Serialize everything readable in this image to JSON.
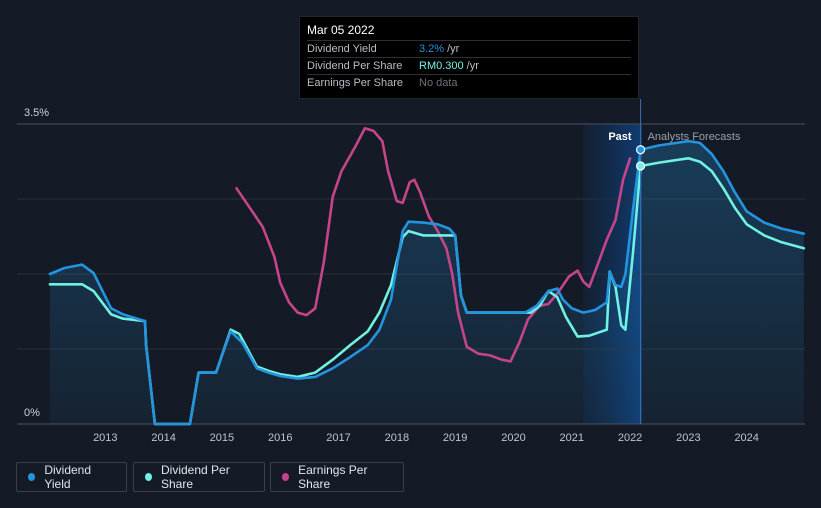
{
  "tooltip": {
    "date": "Mar 05 2022",
    "rows": [
      {
        "label": "Dividend Yield",
        "value": "3.2%",
        "unit": "/yr"
      },
      {
        "label": "Dividend Per Share",
        "value": "RM0.300",
        "unit": "/yr"
      },
      {
        "label": "Earnings Per Share",
        "value": "No data",
        "unit": ""
      }
    ]
  },
  "legend": [
    {
      "label": "Dividend Yield",
      "color": "#2394df"
    },
    {
      "label": "Dividend Per Share",
      "color": "#6ff2e3"
    },
    {
      "label": "Earnings Per Share",
      "color": "#c6458a"
    }
  ],
  "labels": {
    "past": "Past",
    "forecast": "Analysts Forecasts"
  },
  "chart_data": {
    "type": "line",
    "xlim": [
      2012.0,
      2025.0
    ],
    "ylim": [
      0,
      3.5
    ],
    "x_ticks": [
      2013,
      2014,
      2015,
      2016,
      2017,
      2018,
      2019,
      2020,
      2021,
      2022,
      2023,
      2024
    ],
    "y_tick_labels": [
      {
        "value": 3.5,
        "label": "3.5%"
      },
      {
        "value": 0,
        "label": "0%"
      }
    ],
    "past_region": [
      2021.2,
      2022.2
    ],
    "marker_x": 2022.18,
    "series": [
      {
        "name": "Dividend Yield",
        "color": "#2394df",
        "fill": true,
        "points": [
          [
            2012.05,
            1.75
          ],
          [
            2012.3,
            1.82
          ],
          [
            2012.6,
            1.86
          ],
          [
            2012.8,
            1.76
          ],
          [
            2013.1,
            1.35
          ],
          [
            2013.3,
            1.28
          ],
          [
            2013.68,
            1.2
          ],
          [
            2013.7,
            0.92
          ],
          [
            2013.85,
            0
          ],
          [
            2014.45,
            0
          ],
          [
            2014.6,
            0.6
          ],
          [
            2014.9,
            0.6
          ],
          [
            2015.0,
            0.8
          ],
          [
            2015.15,
            1.08
          ],
          [
            2015.35,
            0.95
          ],
          [
            2015.6,
            0.65
          ],
          [
            2015.8,
            0.6
          ],
          [
            2016.0,
            0.56
          ],
          [
            2016.3,
            0.53
          ],
          [
            2016.6,
            0.55
          ],
          [
            2016.9,
            0.65
          ],
          [
            2017.2,
            0.78
          ],
          [
            2017.5,
            0.92
          ],
          [
            2017.7,
            1.1
          ],
          [
            2017.9,
            1.45
          ],
          [
            2018.1,
            2.25
          ],
          [
            2018.2,
            2.36
          ],
          [
            2018.45,
            2.35
          ],
          [
            2018.7,
            2.33
          ],
          [
            2018.9,
            2.28
          ],
          [
            2019.0,
            2.2
          ],
          [
            2019.1,
            1.5
          ],
          [
            2019.2,
            1.3
          ],
          [
            2019.5,
            1.3
          ],
          [
            2019.8,
            1.3
          ],
          [
            2020.0,
            1.3
          ],
          [
            2020.2,
            1.3
          ],
          [
            2020.4,
            1.38
          ],
          [
            2020.6,
            1.55
          ],
          [
            2020.75,
            1.58
          ],
          [
            2020.85,
            1.45
          ],
          [
            2021.0,
            1.35
          ],
          [
            2021.2,
            1.3
          ],
          [
            2021.4,
            1.33
          ],
          [
            2021.6,
            1.42
          ],
          [
            2021.65,
            1.78
          ],
          [
            2021.75,
            1.62
          ],
          [
            2021.85,
            1.6
          ],
          [
            2021.92,
            1.75
          ],
          [
            2022.05,
            2.5
          ],
          [
            2022.18,
            3.2
          ],
          [
            2022.5,
            3.25
          ],
          [
            2022.8,
            3.28
          ],
          [
            2023.0,
            3.3
          ],
          [
            2023.2,
            3.28
          ],
          [
            2023.4,
            3.15
          ],
          [
            2023.6,
            2.95
          ],
          [
            2023.8,
            2.7
          ],
          [
            2024.0,
            2.48
          ],
          [
            2024.3,
            2.35
          ],
          [
            2024.6,
            2.28
          ],
          [
            2024.98,
            2.22
          ]
        ]
      },
      {
        "name": "Dividend Per Share",
        "color": "#6ff2e3",
        "fill": false,
        "points": [
          [
            2012.05,
            1.63
          ],
          [
            2012.6,
            1.63
          ],
          [
            2012.8,
            1.55
          ],
          [
            2013.1,
            1.28
          ],
          [
            2013.3,
            1.23
          ],
          [
            2013.68,
            1.2
          ],
          [
            2013.7,
            0.92
          ],
          [
            2013.85,
            0
          ],
          [
            2014.45,
            0
          ],
          [
            2014.6,
            0.6
          ],
          [
            2014.9,
            0.6
          ],
          [
            2015.0,
            0.8
          ],
          [
            2015.15,
            1.1
          ],
          [
            2015.3,
            1.05
          ],
          [
            2015.6,
            0.67
          ],
          [
            2015.8,
            0.62
          ],
          [
            2016.0,
            0.58
          ],
          [
            2016.3,
            0.55
          ],
          [
            2016.6,
            0.6
          ],
          [
            2016.9,
            0.75
          ],
          [
            2017.2,
            0.92
          ],
          [
            2017.5,
            1.08
          ],
          [
            2017.7,
            1.3
          ],
          [
            2017.9,
            1.62
          ],
          [
            2018.1,
            2.18
          ],
          [
            2018.2,
            2.25
          ],
          [
            2018.45,
            2.2
          ],
          [
            2018.7,
            2.2
          ],
          [
            2018.9,
            2.2
          ],
          [
            2019.0,
            2.2
          ],
          [
            2019.1,
            1.5
          ],
          [
            2019.2,
            1.3
          ],
          [
            2019.5,
            1.3
          ],
          [
            2019.8,
            1.3
          ],
          [
            2020.0,
            1.3
          ],
          [
            2020.3,
            1.3
          ],
          [
            2020.45,
            1.38
          ],
          [
            2020.6,
            1.55
          ],
          [
            2020.75,
            1.48
          ],
          [
            2020.9,
            1.25
          ],
          [
            2021.1,
            1.02
          ],
          [
            2021.3,
            1.03
          ],
          [
            2021.6,
            1.1
          ],
          [
            2021.65,
            1.78
          ],
          [
            2021.75,
            1.6
          ],
          [
            2021.85,
            1.15
          ],
          [
            2021.92,
            1.1
          ],
          [
            2022.05,
            2.0
          ],
          [
            2022.18,
            3.01
          ],
          [
            2022.5,
            3.05
          ],
          [
            2022.8,
            3.08
          ],
          [
            2023.0,
            3.1
          ],
          [
            2023.2,
            3.06
          ],
          [
            2023.4,
            2.95
          ],
          [
            2023.6,
            2.75
          ],
          [
            2023.8,
            2.52
          ],
          [
            2024.0,
            2.33
          ],
          [
            2024.3,
            2.2
          ],
          [
            2024.6,
            2.12
          ],
          [
            2024.98,
            2.05
          ]
        ]
      },
      {
        "name": "Earnings Per Share",
        "color": "#c6458a",
        "fill": false,
        "points": [
          [
            2015.25,
            2.75
          ],
          [
            2015.5,
            2.5
          ],
          [
            2015.7,
            2.3
          ],
          [
            2015.9,
            1.95
          ],
          [
            2016.0,
            1.65
          ],
          [
            2016.15,
            1.42
          ],
          [
            2016.3,
            1.3
          ],
          [
            2016.45,
            1.27
          ],
          [
            2016.6,
            1.35
          ],
          [
            2016.75,
            1.9
          ],
          [
            2016.9,
            2.65
          ],
          [
            2017.05,
            2.95
          ],
          [
            2017.3,
            3.25
          ],
          [
            2017.45,
            3.45
          ],
          [
            2017.6,
            3.42
          ],
          [
            2017.75,
            3.3
          ],
          [
            2017.85,
            2.95
          ],
          [
            2018.0,
            2.6
          ],
          [
            2018.1,
            2.58
          ],
          [
            2018.22,
            2.82
          ],
          [
            2018.3,
            2.85
          ],
          [
            2018.4,
            2.7
          ],
          [
            2018.55,
            2.42
          ],
          [
            2018.7,
            2.25
          ],
          [
            2018.85,
            2.05
          ],
          [
            2018.95,
            1.75
          ],
          [
            2019.05,
            1.3
          ],
          [
            2019.2,
            0.9
          ],
          [
            2019.4,
            0.82
          ],
          [
            2019.6,
            0.8
          ],
          [
            2019.8,
            0.75
          ],
          [
            2019.95,
            0.73
          ],
          [
            2020.1,
            0.95
          ],
          [
            2020.25,
            1.22
          ],
          [
            2020.45,
            1.38
          ],
          [
            2020.6,
            1.4
          ],
          [
            2020.75,
            1.52
          ],
          [
            2020.95,
            1.72
          ],
          [
            2021.1,
            1.79
          ],
          [
            2021.2,
            1.66
          ],
          [
            2021.3,
            1.6
          ],
          [
            2021.45,
            1.87
          ],
          [
            2021.6,
            2.15
          ],
          [
            2021.75,
            2.38
          ],
          [
            2021.88,
            2.85
          ],
          [
            2022.0,
            3.1
          ]
        ]
      }
    ]
  }
}
